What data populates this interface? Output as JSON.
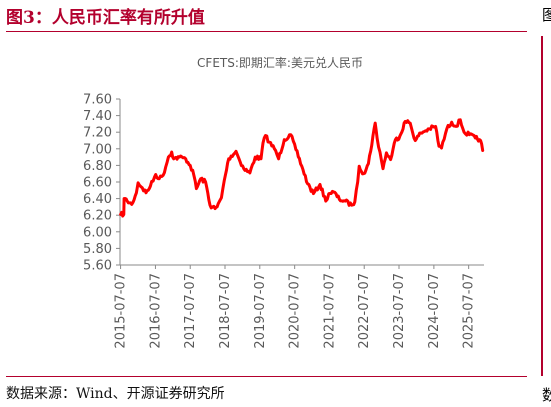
{
  "figure": {
    "title": "图3：人民币汇率有所升值",
    "source": "数据来源：Wind、开源证券研究所",
    "right_edge_chars": [
      "图",
      "数"
    ]
  },
  "colors": {
    "brand": "#b3002d",
    "series": "#ff0000",
    "axis": "#8a8a8a",
    "text": "#595959"
  },
  "chart_data": {
    "type": "line",
    "title": "CFETS:即期汇率:美元兑人民币",
    "xlabel": "",
    "ylabel": "",
    "ylim": [
      5.6,
      7.6
    ],
    "yticks": [
      5.6,
      5.8,
      6.0,
      6.2,
      6.4,
      6.6,
      6.8,
      7.0,
      7.2,
      7.4,
      7.6
    ],
    "ytick_labels": [
      "5.60",
      "5.80",
      "6.00",
      "6.20",
      "6.40",
      "6.60",
      "6.80",
      "7.00",
      "7.20",
      "7.40",
      "7.60"
    ],
    "xlim": [
      "2015-07-01",
      "2025-12-15"
    ],
    "xtick_labels": [
      "2015-07-07",
      "2016-07-07",
      "2017-07-07",
      "2018-07-07",
      "2019-07-07",
      "2020-07-07",
      "2021-07-07",
      "2022-07-07",
      "2023-07-07",
      "2024-07-07",
      "2025-07-07"
    ],
    "grid": false,
    "legend": "none",
    "series": [
      {
        "values": [
          [
            "2015-07-07",
            6.21
          ],
          [
            "2015-08-10",
            6.21
          ],
          [
            "2015-08-13",
            6.4
          ],
          [
            "2015-09-15",
            6.37
          ],
          [
            "2015-11-01",
            6.33
          ],
          [
            "2015-12-20",
            6.47
          ],
          [
            "2016-01-07",
            6.59
          ],
          [
            "2016-02-20",
            6.53
          ],
          [
            "2016-03-30",
            6.47
          ],
          [
            "2016-05-15",
            6.55
          ],
          [
            "2016-07-10",
            6.69
          ],
          [
            "2016-08-15",
            6.64
          ],
          [
            "2016-09-25",
            6.68
          ],
          [
            "2016-11-20",
            6.9
          ],
          [
            "2016-12-25",
            6.96
          ],
          [
            "2017-01-15",
            6.88
          ],
          [
            "2017-03-15",
            6.9
          ],
          [
            "2017-05-20",
            6.88
          ],
          [
            "2017-07-07",
            6.8
          ],
          [
            "2017-08-15",
            6.68
          ],
          [
            "2017-09-10",
            6.52
          ],
          [
            "2017-10-25",
            6.64
          ],
          [
            "2017-12-15",
            6.6
          ],
          [
            "2018-01-30",
            6.32
          ],
          [
            "2018-03-25",
            6.28
          ],
          [
            "2018-04-15",
            6.3
          ],
          [
            "2018-05-30",
            6.41
          ],
          [
            "2018-06-30",
            6.62
          ],
          [
            "2018-08-15",
            6.88
          ],
          [
            "2018-10-30",
            6.97
          ],
          [
            "2018-12-01",
            6.88
          ],
          [
            "2019-01-20",
            6.76
          ],
          [
            "2019-03-25",
            6.71
          ],
          [
            "2019-05-20",
            6.9
          ],
          [
            "2019-07-20",
            6.88
          ],
          [
            "2019-08-10",
            7.07
          ],
          [
            "2019-09-05",
            7.16
          ],
          [
            "2019-10-15",
            7.08
          ],
          [
            "2019-12-20",
            6.98
          ],
          [
            "2020-01-20",
            6.88
          ],
          [
            "2020-03-20",
            7.11
          ],
          [
            "2020-05-27",
            7.17
          ],
          [
            "2020-07-20",
            6.99
          ],
          [
            "2020-09-20",
            6.79
          ],
          [
            "2020-11-20",
            6.58
          ],
          [
            "2021-01-20",
            6.46
          ],
          [
            "2021-03-30",
            6.57
          ],
          [
            "2021-05-30",
            6.37
          ],
          [
            "2021-06-30",
            6.46
          ],
          [
            "2021-08-20",
            6.48
          ],
          [
            "2021-10-20",
            6.39
          ],
          [
            "2021-12-20",
            6.37
          ],
          [
            "2022-02-25",
            6.32
          ],
          [
            "2022-03-30",
            6.36
          ],
          [
            "2022-04-30",
            6.6
          ],
          [
            "2022-05-15",
            6.79
          ],
          [
            "2022-06-30",
            6.7
          ],
          [
            "2022-08-20",
            6.82
          ],
          [
            "2022-10-30",
            7.31
          ],
          [
            "2022-11-20",
            7.12
          ],
          [
            "2022-12-20",
            6.96
          ],
          [
            "2023-01-20",
            6.76
          ],
          [
            "2023-02-25",
            6.95
          ],
          [
            "2023-04-10",
            6.87
          ],
          [
            "2023-05-30",
            7.11
          ],
          [
            "2023-07-15",
            7.15
          ],
          [
            "2023-09-10",
            7.33
          ],
          [
            "2023-11-01",
            7.31
          ],
          [
            "2023-12-25",
            7.1
          ],
          [
            "2024-02-20",
            7.19
          ],
          [
            "2024-05-20",
            7.24
          ],
          [
            "2024-07-25",
            7.27
          ],
          [
            "2024-08-30",
            7.03
          ],
          [
            "2024-09-25",
            7.01
          ],
          [
            "2024-11-20",
            7.24
          ],
          [
            "2025-01-10",
            7.32
          ],
          [
            "2025-02-25",
            7.27
          ],
          [
            "2025-04-10",
            7.35
          ],
          [
            "2025-05-20",
            7.2
          ],
          [
            "2025-07-15",
            7.17
          ],
          [
            "2025-09-15",
            7.13
          ],
          [
            "2025-10-30",
            7.11
          ],
          [
            "2025-11-20",
            7.06
          ],
          [
            "2025-12-01",
            6.98
          ]
        ]
      }
    ]
  }
}
